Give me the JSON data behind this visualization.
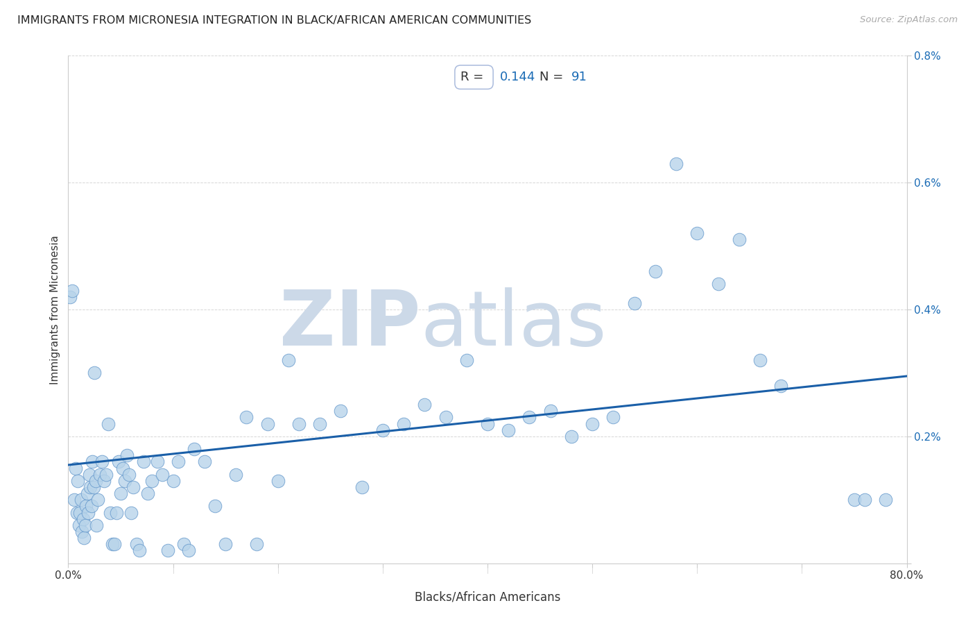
{
  "title": "IMMIGRANTS FROM MICRONESIA INTEGRATION IN BLACK/AFRICAN AMERICAN COMMUNITIES",
  "source": "Source: ZipAtlas.com",
  "xlabel": "Blacks/African Americans",
  "ylabel": "Immigrants from Micronesia",
  "R": 0.144,
  "N": 91,
  "xlim": [
    0.0,
    0.8
  ],
  "ylim": [
    0.0,
    0.008
  ],
  "xticks": [
    0.0,
    0.1,
    0.2,
    0.3,
    0.4,
    0.5,
    0.6,
    0.7,
    0.8
  ],
  "xticklabels": [
    "0.0%",
    "",
    "",
    "",
    "",
    "",
    "",
    "",
    "80.0%"
  ],
  "yticks": [
    0.0,
    0.002,
    0.004,
    0.006,
    0.008
  ],
  "yticklabels": [
    "",
    "0.2%",
    "0.4%",
    "0.6%",
    "0.8%"
  ],
  "dot_color": "#b8d4ea",
  "dot_edge_color": "#6699cc",
  "line_color": "#1a5fa8",
  "title_color": "#222222",
  "source_color": "#aaaaaa",
  "annotation_color": "#1a6bb5",
  "watermark_color": "#ccd9e8",
  "background_color": "#ffffff",
  "grid_color": "#cccccc",
  "line_y0": 0.00155,
  "line_y1": 0.00295,
  "scatter_x": [
    0.002,
    0.004,
    0.006,
    0.007,
    0.008,
    0.009,
    0.01,
    0.011,
    0.012,
    0.013,
    0.014,
    0.015,
    0.016,
    0.017,
    0.018,
    0.019,
    0.02,
    0.021,
    0.022,
    0.023,
    0.024,
    0.025,
    0.026,
    0.027,
    0.028,
    0.03,
    0.032,
    0.034,
    0.036,
    0.038,
    0.04,
    0.042,
    0.044,
    0.046,
    0.048,
    0.05,
    0.052,
    0.054,
    0.056,
    0.058,
    0.06,
    0.062,
    0.065,
    0.068,
    0.072,
    0.076,
    0.08,
    0.085,
    0.09,
    0.095,
    0.1,
    0.105,
    0.11,
    0.115,
    0.12,
    0.13,
    0.14,
    0.15,
    0.16,
    0.17,
    0.18,
    0.19,
    0.2,
    0.21,
    0.22,
    0.24,
    0.26,
    0.28,
    0.3,
    0.32,
    0.34,
    0.36,
    0.38,
    0.4,
    0.42,
    0.44,
    0.46,
    0.48,
    0.5,
    0.52,
    0.54,
    0.56,
    0.58,
    0.6,
    0.62,
    0.64,
    0.66,
    0.68,
    0.75,
    0.76,
    0.78
  ],
  "scatter_y": [
    0.0042,
    0.0043,
    0.001,
    0.0015,
    0.0008,
    0.0013,
    0.0006,
    0.0008,
    0.001,
    0.0005,
    0.0007,
    0.0004,
    0.0006,
    0.0009,
    0.0011,
    0.0008,
    0.0014,
    0.0012,
    0.0009,
    0.0016,
    0.0012,
    0.003,
    0.0013,
    0.0006,
    0.001,
    0.0014,
    0.0016,
    0.0013,
    0.0014,
    0.0022,
    0.0008,
    0.0003,
    0.0003,
    0.0008,
    0.0016,
    0.0011,
    0.0015,
    0.0013,
    0.0017,
    0.0014,
    0.0008,
    0.0012,
    0.0003,
    0.0002,
    0.0016,
    0.0011,
    0.0013,
    0.0016,
    0.0014,
    0.0002,
    0.0013,
    0.0016,
    0.0003,
    0.0002,
    0.0018,
    0.0016,
    0.0009,
    0.0003,
    0.0014,
    0.0023,
    0.0003,
    0.0022,
    0.0013,
    0.0032,
    0.0022,
    0.0022,
    0.0024,
    0.0012,
    0.0021,
    0.0022,
    0.0025,
    0.0023,
    0.0032,
    0.0022,
    0.0021,
    0.0023,
    0.0024,
    0.002,
    0.0022,
    0.0023,
    0.0041,
    0.0046,
    0.0063,
    0.0052,
    0.0044,
    0.0051,
    0.0032,
    0.0028,
    0.001,
    0.001,
    0.001
  ]
}
